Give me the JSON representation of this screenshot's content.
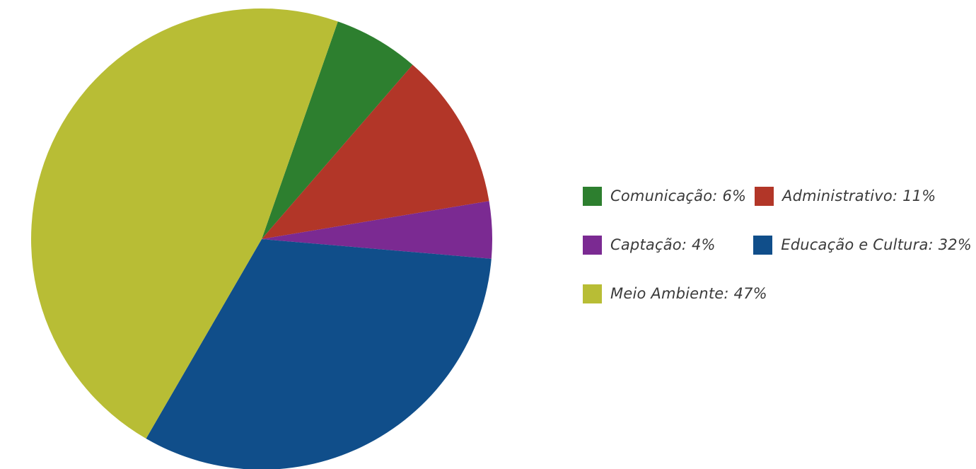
{
  "chart_data": {
    "type": "pie",
    "title": "",
    "slices": [
      {
        "label": "Comunicação",
        "value": 6,
        "legend_text": "Comunicação: 6%",
        "color": "#2d7f2f"
      },
      {
        "label": "Administrativo",
        "value": 11,
        "legend_text": "Administrativo: 11%",
        "color": "#b23628"
      },
      {
        "label": "Captação",
        "value": 4,
        "legend_text": "Captação: 4%",
        "color": "#7b2a92"
      },
      {
        "label": "Educação e Cultura",
        "value": 32,
        "legend_text": "Educação e Cultura: 32%",
        "color": "#104e8a"
      },
      {
        "label": "Meio Ambiente",
        "value": 47,
        "legend_text": "Meio Ambiente: 47%",
        "color": "#b8bd35"
      }
    ],
    "legend_position": "right"
  }
}
